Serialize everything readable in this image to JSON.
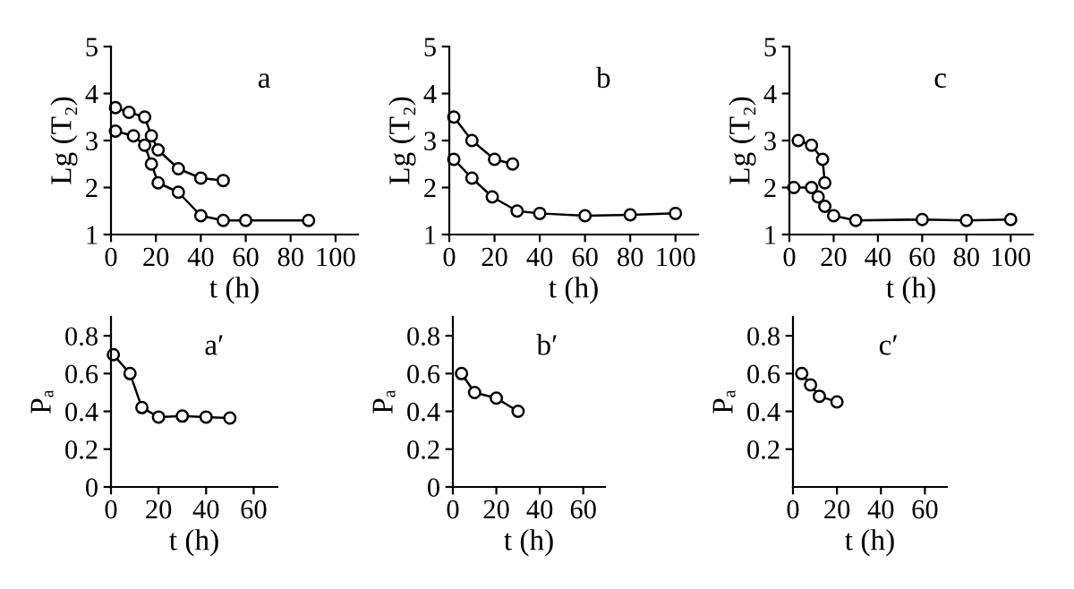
{
  "chart_data": [
    {
      "type": "line",
      "xlabel": "t (h)",
      "ylabel": "Lg (T₂)",
      "annotations": [
        "a"
      ],
      "xlim": [
        0,
        110
      ],
      "ylim": [
        1,
        5
      ],
      "xticks": [
        0,
        20,
        40,
        60,
        80,
        100
      ],
      "yticks": [
        1,
        2,
        3,
        4,
        5
      ],
      "marker": "circle",
      "line_style": "solid",
      "grid": false,
      "legend": false,
      "series": [
        {
          "color": "#000000",
          "x": [
            2,
            8,
            15,
            18,
            21,
            30,
            40,
            50
          ],
          "values": [
            3.7,
            3.6,
            3.5,
            3.1,
            2.8,
            2.4,
            2.2,
            2.15
          ]
        },
        {
          "color": "#000000",
          "x": [
            2,
            10,
            15,
            18,
            21,
            30,
            40,
            50,
            60,
            88
          ],
          "values": [
            3.2,
            3.1,
            2.9,
            2.5,
            2.1,
            1.9,
            1.4,
            1.3,
            1.3,
            1.3
          ]
        }
      ]
    },
    {
      "type": "line",
      "xlabel": "t (h)",
      "ylabel": "Lg (T₂)",
      "annotations": [
        "b"
      ],
      "xlim": [
        0,
        110
      ],
      "ylim": [
        1,
        5
      ],
      "xticks": [
        0,
        20,
        40,
        60,
        80,
        100
      ],
      "yticks": [
        1,
        2,
        3,
        4,
        5
      ],
      "marker": "circle",
      "line_style": "solid",
      "grid": false,
      "legend": false,
      "series": [
        {
          "color": "#000000",
          "x": [
            2,
            10,
            20,
            28
          ],
          "values": [
            3.5,
            3.0,
            2.6,
            2.5
          ]
        },
        {
          "color": "#000000",
          "x": [
            2,
            10,
            19,
            30,
            40,
            60,
            80,
            100
          ],
          "values": [
            2.6,
            2.2,
            1.8,
            1.5,
            1.45,
            1.4,
            1.42,
            1.45
          ]
        }
      ]
    },
    {
      "type": "line",
      "xlabel": "t (h)",
      "ylabel": "Lg (T₂)",
      "annotations": [
        "c"
      ],
      "xlim": [
        0,
        110
      ],
      "ylim": [
        1,
        5
      ],
      "xticks": [
        0,
        20,
        40,
        60,
        80,
        100
      ],
      "yticks": [
        1,
        2,
        3,
        4,
        5
      ],
      "marker": "circle",
      "line_style": "solid",
      "grid": false,
      "legend": false,
      "series": [
        {
          "color": "#000000",
          "x": [
            4,
            10,
            15,
            16
          ],
          "values": [
            3.0,
            2.9,
            2.6,
            2.1
          ]
        },
        {
          "color": "#000000",
          "x": [
            2,
            10,
            13,
            16,
            20,
            30,
            60,
            80,
            100
          ],
          "values": [
            2.0,
            2.0,
            1.8,
            1.6,
            1.4,
            1.3,
            1.32,
            1.3,
            1.32
          ]
        }
      ]
    },
    {
      "type": "line",
      "xlabel": "t (h)",
      "ylabel": "Pₐ",
      "annotations": [
        "a′"
      ],
      "xlim": [
        0,
        70
      ],
      "ylim": [
        0,
        0.9
      ],
      "xticks": [
        0,
        20,
        40,
        60
      ],
      "yticks": [
        0,
        0.2,
        0.4,
        0.6,
        0.8
      ],
      "marker": "circle",
      "line_style": "solid",
      "grid": false,
      "legend": false,
      "series": [
        {
          "color": "#000000",
          "x": [
            1,
            8,
            13,
            20,
            30,
            40,
            50
          ],
          "values": [
            0.7,
            0.6,
            0.42,
            0.37,
            0.375,
            0.37,
            0.365
          ]
        }
      ]
    },
    {
      "type": "line",
      "xlabel": "t (h)",
      "ylabel": "Pₐ",
      "annotations": [
        "b′"
      ],
      "xlim": [
        0,
        70
      ],
      "ylim": [
        0,
        0.9
      ],
      "xticks": [
        0,
        20,
        40,
        60
      ],
      "yticks": [
        0,
        0.2,
        0.4,
        0.6,
        0.8
      ],
      "marker": "circle",
      "line_style": "solid",
      "grid": false,
      "legend": false,
      "series": [
        {
          "color": "#000000",
          "x": [
            4,
            10,
            20,
            30
          ],
          "values": [
            0.6,
            0.5,
            0.47,
            0.4
          ]
        }
      ]
    },
    {
      "type": "line",
      "xlabel": "t (h)",
      "ylabel": "Pₐ",
      "annotations": [
        "c′"
      ],
      "xlim": [
        0,
        70
      ],
      "ylim": [
        0,
        0.9
      ],
      "xticks": [
        0,
        20,
        40,
        60
      ],
      "yticks": [
        0.2,
        0.4,
        0.6,
        0.8
      ],
      "marker": "circle",
      "line_style": "solid",
      "grid": false,
      "legend": false,
      "series": [
        {
          "color": "#000000",
          "x": [
            4,
            8,
            12,
            20
          ],
          "values": [
            0.6,
            0.54,
            0.48,
            0.45
          ]
        }
      ]
    }
  ]
}
